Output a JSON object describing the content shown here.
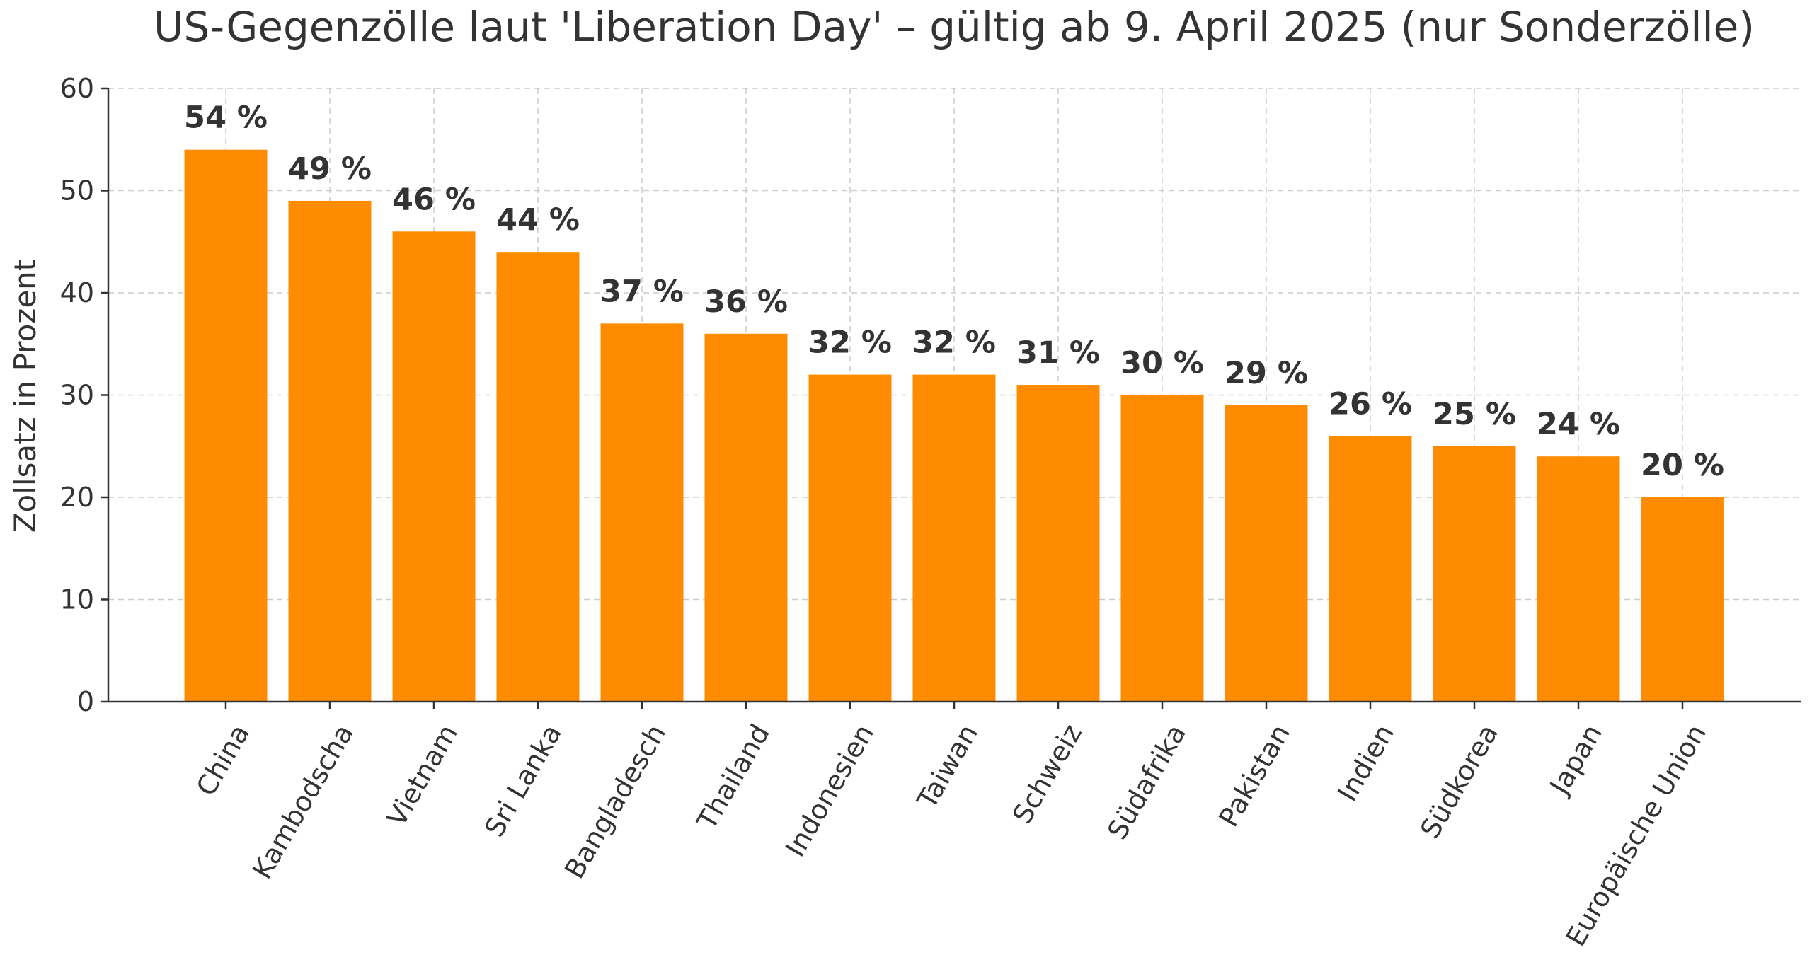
{
  "chart_data": {
    "type": "bar",
    "title": "US-Gegenzölle laut 'Liberation Day' – gültig ab 9. April 2025 (nur Sonderzölle)",
    "xlabel": "",
    "ylabel": "Zollsatz in Prozent",
    "ylim": [
      0,
      60
    ],
    "yticks": [
      "0",
      "10",
      "20",
      "30",
      "40",
      "50",
      "60"
    ],
    "grid": true,
    "bar_color": "#ff8c00",
    "categories": [
      "China",
      "Kambodscha",
      "Vietnam",
      "Sri Lanka",
      "Bangladesch",
      "Thailand",
      "Indonesien",
      "Taiwan",
      "Schweiz",
      "Südafrika",
      "Pakistan",
      "Indien",
      "Südkorea",
      "Japan",
      "Europäische Union"
    ],
    "values": [
      54,
      49,
      46,
      44,
      37,
      36,
      32,
      32,
      31,
      30,
      29,
      26,
      25,
      24,
      20
    ],
    "data_labels": [
      "54 %",
      "49 %",
      "46 %",
      "44 %",
      "37 %",
      "36 %",
      "32 %",
      "32 %",
      "31 %",
      "30 %",
      "29 %",
      "26 %",
      "25 %",
      "24 %",
      "20 %"
    ]
  }
}
